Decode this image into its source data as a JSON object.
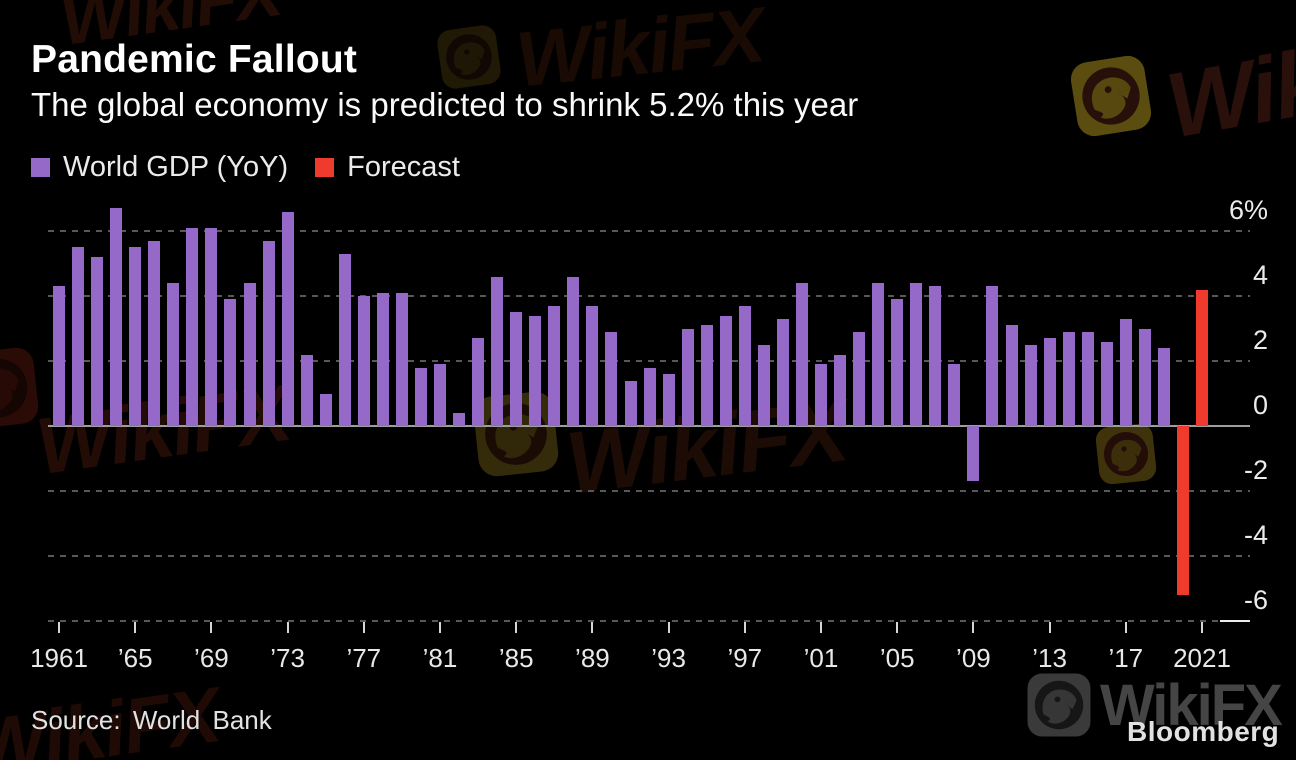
{
  "page": {
    "title": "Pandemic Fallout",
    "subtitle": "The global economy is predicted to shrink 5.2% this year",
    "source": "Source: World Bank",
    "brand": "Bloomberg",
    "watermark_text": "WikiFX"
  },
  "legend": [
    {
      "label": "World GDP (YoY)",
      "color": "#9569c8"
    },
    {
      "label": "Forecast",
      "color": "#ef3b2d"
    }
  ],
  "chart_data": {
    "type": "bar",
    "title": "Pandemic Fallout",
    "subtitle": "The global economy is predicted to shrink 5.2% this year",
    "unit": "%",
    "ylabel": "",
    "xlabel": "",
    "ylim": [
      -6.3,
      7.0
    ],
    "yticks": [
      6,
      4,
      2,
      0,
      -2,
      -4,
      -6
    ],
    "ytick_labels": [
      "6%",
      "4",
      "2",
      "0",
      "-2",
      "-4",
      "-6"
    ],
    "xtick_years": [
      1961,
      1965,
      1969,
      1973,
      1977,
      1981,
      1985,
      1989,
      1993,
      1997,
      2001,
      2005,
      2009,
      2013,
      2017,
      2021
    ],
    "xtick_labels": [
      "1961",
      "’65",
      "’69",
      "’73",
      "’77",
      "’81",
      "’85",
      "’89",
      "’93",
      "’97",
      "’01",
      "’05",
      "’09",
      "’13",
      "’17",
      "2021"
    ],
    "grid": "horizontal-dashed",
    "zero_line": true,
    "legend_position": "top-left",
    "series": [
      {
        "name": "World GDP (YoY)",
        "color": "#9569c8",
        "start_year": 1961,
        "values": [
          4.3,
          5.5,
          5.2,
          6.7,
          5.5,
          5.7,
          4.4,
          6.1,
          6.1,
          3.9,
          4.4,
          5.7,
          6.6,
          2.2,
          1.0,
          5.3,
          4.0,
          4.1,
          4.1,
          1.8,
          1.9,
          0.4,
          2.7,
          4.6,
          3.5,
          3.4,
          3.7,
          4.6,
          3.7,
          2.9,
          1.4,
          1.8,
          1.6,
          3.0,
          3.1,
          3.4,
          3.7,
          2.5,
          3.3,
          4.4,
          1.9,
          2.2,
          2.9,
          4.4,
          3.9,
          4.4,
          4.3,
          1.9,
          -1.7,
          4.3,
          3.1,
          2.5,
          2.7,
          2.9,
          2.9,
          2.6,
          3.3,
          3.0,
          2.4
        ]
      },
      {
        "name": "Forecast",
        "color": "#ef3b2d",
        "start_year": 2020,
        "values": [
          -5.2,
          4.2
        ]
      }
    ]
  }
}
